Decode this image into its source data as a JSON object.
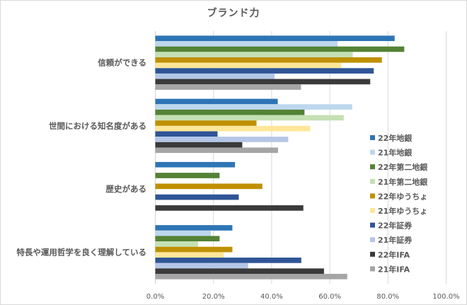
{
  "chart_data": {
    "type": "bar",
    "orientation": "horizontal",
    "title": "ブランド力",
    "xlabel": "",
    "ylabel": "",
    "xlim": [
      0,
      100
    ],
    "x_ticks": [
      "0.0%",
      "20.0%",
      "40.0%",
      "60.0%",
      "80.0%",
      "100.0%"
    ],
    "grid": true,
    "legend_position": "right",
    "categories": [
      "信頼ができる",
      "世間における知名度がある",
      "歴史がある",
      "特長や運用哲学を良く理解している"
    ],
    "series": [
      {
        "name": "22年地銀",
        "color": "#2E75B6",
        "values": [
          82.3,
          42.1,
          27.4,
          26.5
        ]
      },
      {
        "name": "21年地銀",
        "color": "#BDD7EE",
        "values": [
          62.7,
          67.7,
          null,
          19.1
        ]
      },
      {
        "name": "22年第二地銀",
        "color": "#548235",
        "values": [
          85.6,
          51.3,
          22.1,
          22.1
        ]
      },
      {
        "name": "21年第二地銀",
        "color": "#C5E0B4",
        "values": [
          67.9,
          64.8,
          null,
          14.7
        ]
      },
      {
        "name": "22年ゆうちょ",
        "color": "#BF9000",
        "values": [
          77.9,
          34.8,
          36.8,
          26.5
        ]
      },
      {
        "name": "21年ゆうちょ",
        "color": "#FFE699",
        "values": [
          64.0,
          53.3,
          null,
          23.5
        ]
      },
      {
        "name": "22年証券",
        "color": "#2F5597",
        "values": [
          75.1,
          21.4,
          28.7,
          50.2
        ]
      },
      {
        "name": "21年証券",
        "color": "#B4C7E7",
        "values": [
          41.0,
          45.7,
          null,
          31.9
        ]
      },
      {
        "name": "22年IFA",
        "color": "#3A3A3A",
        "values": [
          73.9,
          29.9,
          50.9,
          58.0
        ]
      },
      {
        "name": "21年IFA",
        "color": "#A5A5A5",
        "values": [
          50.1,
          42.2,
          null,
          66.0
        ]
      }
    ]
  }
}
